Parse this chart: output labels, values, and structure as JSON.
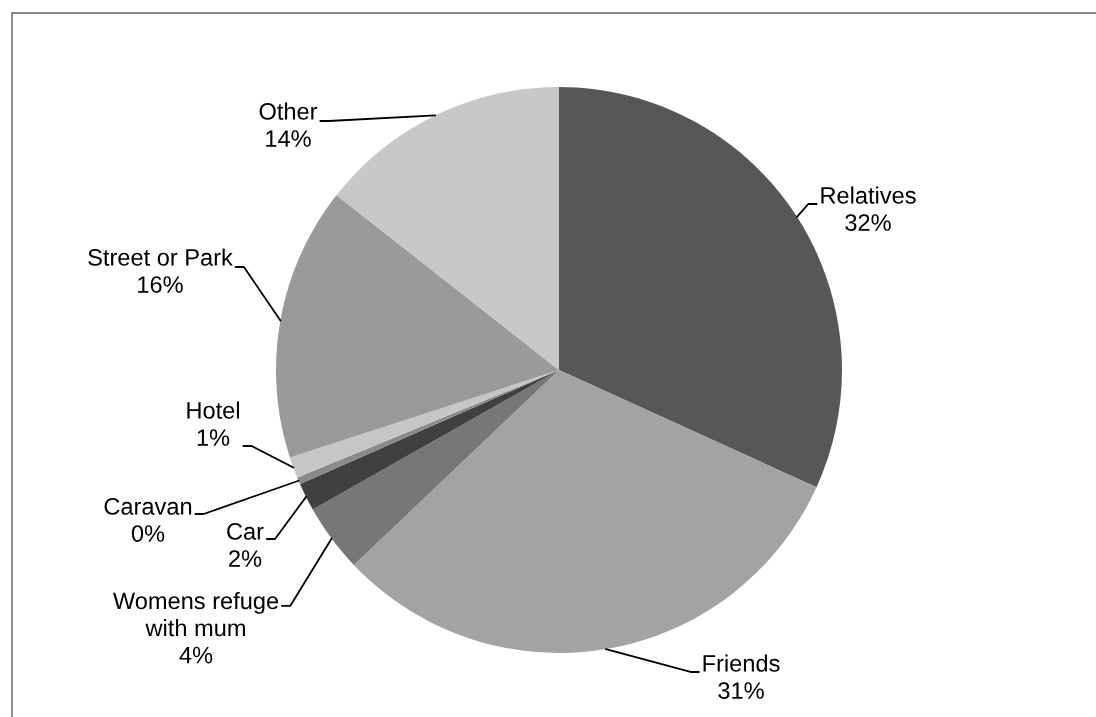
{
  "chart_data": {
    "type": "pie",
    "categories": [
      "Relatives",
      "Friends",
      "Womens refuge with mum",
      "Car",
      "Caravan",
      "Hotel",
      "Street or Park",
      "Other"
    ],
    "values": [
      31.8,
      31.1,
      3.9,
      1.6,
      0.4,
      1.2,
      15.6,
      14.4
    ],
    "value_labels": [
      "32%",
      "31%",
      "4%",
      "2%",
      "0%",
      "1%",
      "16%",
      "14%"
    ],
    "colors": [
      "#575757",
      "#a3a3a3",
      "#777777",
      "#404040",
      "#8a8a8a",
      "#c6c6c6",
      "#9a9a9a",
      "#c8c8c8"
    ]
  }
}
